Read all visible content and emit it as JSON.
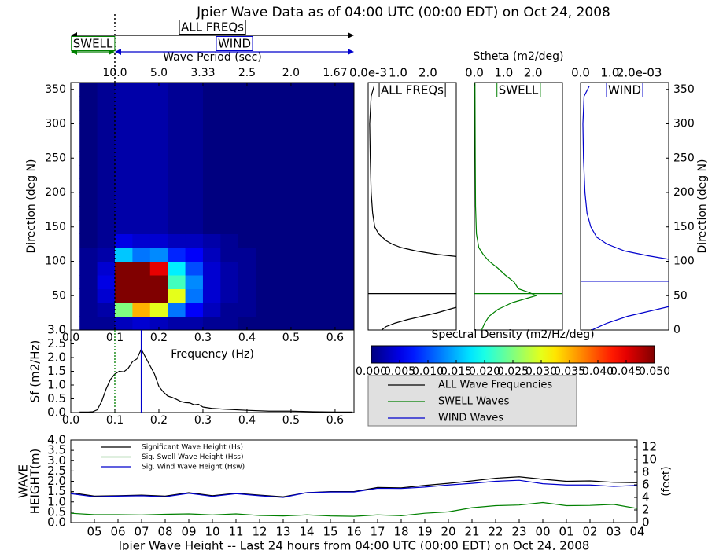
{
  "chart_data": [
    {
      "type": "heatmap",
      "title": "Jpier Wave Data as of 04:00 UTC (00:00 EDT) on Oct 24, 2008",
      "xlabel": "Frequency (Hz)",
      "ylabel": "Direction (deg N)",
      "x2label": "Wave Period (sec)",
      "xlim": [
        0,
        0.643
      ],
      "ylim": [
        0,
        360
      ],
      "xticks": [
        {
          "value": 0,
          "label": "0.0"
        },
        0.1,
        0.2,
        0.3,
        0.4,
        0.5,
        0.6
      ],
      "x2ticks": [
        {
          "value": 0.1,
          "label": "10.0"
        },
        {
          "value": 0.2,
          "label": "5.0"
        },
        {
          "value": 0.3,
          "label": "3.33"
        },
        {
          "value": 0.4,
          "label": "2.5"
        },
        {
          "value": 0.5,
          "label": "2.0"
        },
        {
          "value": 0.6,
          "label": "1.67"
        }
      ],
      "yticks": [
        0,
        50,
        100,
        150,
        200,
        250,
        300,
        350
      ],
      "xbins": [
        0.02,
        0.06,
        0.1,
        0.14,
        0.18,
        0.22,
        0.26,
        0.3,
        0.34,
        0.38,
        0.42,
        0.46,
        0.5,
        0.54,
        0.58,
        0.62,
        0.66
      ],
      "ybins": [
        0,
        20,
        40,
        60,
        80,
        100,
        120,
        140,
        160,
        180,
        200,
        220,
        240,
        260,
        280,
        300,
        320,
        340,
        360
      ],
      "values": [
        [
          0.001,
          0.001,
          0.003,
          0.004,
          0.003,
          0.002,
          0.002,
          0.001,
          0.001,
          0,
          0,
          0,
          0,
          0,
          0,
          0
        ],
        [
          0.001,
          0.002,
          0.025,
          0.035,
          0.03,
          0.012,
          0.006,
          0.003,
          0.001,
          0.001,
          0,
          0,
          0,
          0,
          0,
          0
        ],
        [
          0.001,
          0.004,
          0.05,
          0.05,
          0.05,
          0.03,
          0.012,
          0.004,
          0.002,
          0.001,
          0,
          0,
          0,
          0,
          0,
          0
        ],
        [
          0.001,
          0.005,
          0.05,
          0.05,
          0.05,
          0.022,
          0.013,
          0.004,
          0.002,
          0.001,
          0,
          0,
          0,
          0,
          0,
          0
        ],
        [
          0.001,
          0.004,
          0.05,
          0.05,
          0.045,
          0.018,
          0.01,
          0.004,
          0.002,
          0.001,
          0,
          0,
          0,
          0,
          0,
          0
        ],
        [
          0.001,
          0.002,
          0.016,
          0.012,
          0.013,
          0.008,
          0.006,
          0.003,
          0.001,
          0.001,
          0,
          0,
          0,
          0,
          0,
          0
        ],
        [
          0,
          0.001,
          0.005,
          0.004,
          0.004,
          0.003,
          0.003,
          0.002,
          0.001,
          0,
          0,
          0,
          0,
          0,
          0,
          0
        ],
        [
          0,
          0.001,
          0.002,
          0.002,
          0.002,
          0.001,
          0.001,
          0,
          0,
          0,
          0,
          0,
          0,
          0,
          0,
          0
        ],
        [
          0,
          0.001,
          0.002,
          0.002,
          0.002,
          0.001,
          0.001,
          0,
          0,
          0,
          0,
          0,
          0,
          0,
          0,
          0
        ],
        [
          0,
          0.001,
          0.002,
          0.002,
          0.002,
          0.001,
          0.001,
          0,
          0,
          0,
          0,
          0,
          0,
          0,
          0,
          0
        ],
        [
          0,
          0.001,
          0.002,
          0.002,
          0.002,
          0.001,
          0.001,
          0,
          0,
          0,
          0,
          0,
          0,
          0,
          0,
          0
        ],
        [
          0,
          0.001,
          0.002,
          0.002,
          0.002,
          0.001,
          0.001,
          0,
          0,
          0,
          0,
          0,
          0,
          0,
          0,
          0
        ],
        [
          0,
          0.001,
          0.002,
          0.002,
          0.002,
          0.001,
          0.001,
          0,
          0,
          0,
          0,
          0,
          0,
          0,
          0,
          0
        ],
        [
          0,
          0.001,
          0.002,
          0.002,
          0.002,
          0.001,
          0.001,
          0,
          0,
          0,
          0,
          0,
          0,
          0,
          0,
          0
        ],
        [
          0,
          0.001,
          0.002,
          0.002,
          0.002,
          0.001,
          0.001,
          0,
          0,
          0,
          0,
          0,
          0,
          0,
          0,
          0
        ],
        [
          0,
          0.001,
          0.002,
          0.002,
          0.002,
          0.001,
          0.001,
          0,
          0,
          0,
          0,
          0,
          0,
          0,
          0,
          0
        ],
        [
          0,
          0.001,
          0.002,
          0.002,
          0.002,
          0.001,
          0.001,
          0,
          0,
          0,
          0,
          0,
          0,
          0,
          0,
          0
        ],
        [
          0,
          0.001,
          0.002,
          0.002,
          0.002,
          0.001,
          0.001,
          0,
          0,
          0,
          0,
          0,
          0,
          0,
          0,
          0
        ]
      ],
      "bands": [
        {
          "label": "ALL FREQs",
          "color": "#000000",
          "range": [
            0,
            0.643
          ],
          "row": 0
        },
        {
          "label": "SWELL",
          "color": "#008000",
          "range": [
            0,
            0.1
          ],
          "row": 1
        },
        {
          "label": "WIND",
          "color": "#0000cc",
          "range": [
            0.1,
            0.643
          ],
          "row": 1
        }
      ],
      "markers": [
        {
          "value": 0.1,
          "color": "#000000",
          "dashed": true
        }
      ],
      "colorbar": {
        "label": "Spectral Density (m2/Hz/deg)",
        "lim": [
          0,
          0.05
        ],
        "ticks": [
          {
            "value": 0,
            "label": "0.000"
          },
          {
            "value": 0.005,
            "label": "0.005"
          },
          {
            "value": 0.01,
            "label": "0.010"
          },
          {
            "value": 0.015,
            "label": "0.015"
          },
          {
            "value": 0.02,
            "label": "0.020"
          },
          {
            "value": 0.025,
            "label": "0.025"
          },
          {
            "value": 0.03,
            "label": "0.030"
          },
          {
            "value": 0.035,
            "label": "0.035"
          },
          {
            "value": 0.04,
            "label": "0.040"
          },
          {
            "value": 0.045,
            "label": "0.045"
          },
          {
            "value": 0.05,
            "label": "0.050"
          }
        ]
      }
    },
    {
      "type": "profile",
      "label": "ALL FREQs",
      "color": "#000000",
      "xlim": [
        0,
        2.95
      ],
      "ylim": [
        0,
        360
      ],
      "xticks": [
        {
          "value": 0,
          "label": "0.0e-3"
        },
        {
          "value": 1,
          "label": "1.0"
        },
        {
          "value": 2,
          "label": "2.0"
        }
      ],
      "directions": [
        0,
        5,
        10,
        15,
        20,
        25,
        30,
        33,
        70,
        107,
        110,
        115,
        120,
        125,
        130,
        140,
        150,
        170,
        200,
        250,
        300,
        340,
        355
      ],
      "values": [
        0.45,
        0.6,
        0.9,
        1.3,
        1.8,
        2.3,
        2.7,
        2.95,
        null,
        2.95,
        2.3,
        1.6,
        1.1,
        0.8,
        0.6,
        0.35,
        0.22,
        0.15,
        0.1,
        0.07,
        0.05,
        0.1,
        0.2
      ],
      "mean_direction": 53
    },
    {
      "type": "profile",
      "label": "SWELL",
      "color": "#008000",
      "xlabel": "Stheta (m2/deg)",
      "xlim": [
        0,
        3.0
      ],
      "ylim": [
        0,
        360
      ],
      "xticks": [
        {
          "value": 0,
          "label": "0.0"
        },
        {
          "value": 1,
          "label": "1.0"
        },
        {
          "value": 2,
          "label": "2.0"
        }
      ],
      "directions": [
        0,
        10,
        20,
        30,
        40,
        45,
        50,
        55,
        60,
        70,
        80,
        90,
        100,
        110,
        120,
        140,
        180,
        250,
        360
      ],
      "values": [
        0.25,
        0.35,
        0.5,
        0.8,
        1.3,
        1.7,
        2.1,
        1.85,
        1.5,
        1.35,
        1.05,
        0.8,
        0.5,
        0.3,
        0.15,
        0.07,
        0.04,
        0.03,
        0.02
      ],
      "mean_direction": 53
    },
    {
      "type": "profile",
      "label": "WIND",
      "color": "#0000cc",
      "ylabel": "Direction (deg N)",
      "xlim": [
        0,
        3.0
      ],
      "ylim": [
        0,
        360
      ],
      "xticks": [
        {
          "value": 0,
          "label": "0.0"
        },
        {
          "value": 1,
          "label": "1.0"
        },
        {
          "value": 2,
          "label": "2.0e-03"
        }
      ],
      "yticks": [
        0,
        50,
        100,
        150,
        200,
        250,
        300,
        350
      ],
      "directions": [
        0,
        10,
        20,
        30,
        34,
        70,
        103,
        108,
        115,
        125,
        135,
        150,
        170,
        200,
        250,
        300,
        340,
        355
      ],
      "values": [
        0.38,
        0.9,
        1.6,
        2.6,
        3.0,
        null,
        3.0,
        2.3,
        1.5,
        0.9,
        0.55,
        0.35,
        0.22,
        0.15,
        0.1,
        0.08,
        0.12,
        0.3
      ],
      "mean_direction": 71
    },
    {
      "type": "line",
      "ylabel": "Sf (m2/Hz)",
      "xlim": [
        0,
        0.643
      ],
      "ylim": [
        0,
        3
      ],
      "xticks": [
        {
          "value": 0,
          "label": "0.0"
        },
        0.1,
        0.2,
        0.3,
        0.4,
        0.5,
        0.6
      ],
      "yticks": [
        {
          "value": 0,
          "label": "0.0"
        },
        0.5,
        {
          "value": 1,
          "label": "1.0"
        },
        1.5,
        {
          "value": 2,
          "label": "2.0"
        },
        2.5,
        {
          "value": 3,
          "label": "3.0"
        }
      ],
      "x": [
        0.02,
        0.04,
        0.05,
        0.06,
        0.07,
        0.08,
        0.09,
        0.1,
        0.11,
        0.12,
        0.13,
        0.14,
        0.15,
        0.16,
        0.17,
        0.18,
        0.19,
        0.2,
        0.21,
        0.22,
        0.23,
        0.24,
        0.25,
        0.26,
        0.27,
        0.28,
        0.29,
        0.3,
        0.32,
        0.35,
        0.4,
        0.45,
        0.5,
        0.55,
        0.6,
        0.64
      ],
      "series": [
        {
          "color": "#000000",
          "values": [
            0.02,
            0.02,
            0.03,
            0.1,
            0.4,
            0.85,
            1.2,
            1.4,
            1.5,
            1.48,
            1.6,
            1.85,
            1.95,
            2.3,
            2.0,
            1.7,
            1.4,
            0.95,
            0.75,
            0.6,
            0.55,
            0.48,
            0.4,
            0.36,
            0.35,
            0.28,
            0.3,
            0.2,
            0.15,
            0.12,
            0.08,
            0.05,
            0.05,
            0.03,
            0.02,
            0.02
          ]
        }
      ],
      "vlines": [
        {
          "value": 0.1,
          "color": "#008000",
          "dashed": true
        },
        {
          "value": 0.16,
          "color": "#0000cc"
        }
      ]
    },
    {
      "type": "legend",
      "entries": [
        {
          "name": "ALL Wave Frequencies",
          "color": "#000000"
        },
        {
          "name": "SWELL Waves",
          "color": "#008000"
        },
        {
          "name": "WIND Waves",
          "color": "#0000cc"
        }
      ]
    },
    {
      "type": "line",
      "xlabel": "Jpier Wave Height -- Last 24 hours from 04:00 UTC (00:00 EDT) on Oct 24, 2008",
      "ylabel": [
        "WAVE",
        "HEIGHT(m)"
      ],
      "y2label": "(feet)",
      "categories": [
        null,
        "05",
        "06",
        "07",
        "08",
        "09",
        "10",
        "11",
        "12",
        "13",
        "14",
        "15",
        "16",
        "17",
        "18",
        "19",
        "20",
        "21",
        "22",
        "23",
        "00",
        "01",
        "02",
        "03",
        "04"
      ],
      "ylim": [
        0,
        4
      ],
      "yticks": [
        {
          "value": 0,
          "label": "0.0"
        },
        0.5,
        {
          "value": 1,
          "label": "1.0"
        },
        1.5,
        {
          "value": 2,
          "label": "2.0"
        },
        2.5,
        {
          "value": 3,
          "label": "3.0"
        },
        3.5,
        {
          "value": 4,
          "label": "4.0"
        }
      ],
      "y2lim": [
        0,
        13.12
      ],
      "y2ticks": [
        0,
        2,
        4,
        6,
        8,
        10,
        12
      ],
      "legend": "upper left",
      "series": [
        {
          "name": "Significant Wave Height (Hs)",
          "color": "#000000",
          "values": [
            1.45,
            1.28,
            1.3,
            1.33,
            1.28,
            1.45,
            1.3,
            1.42,
            1.33,
            1.25,
            1.45,
            1.5,
            1.5,
            1.7,
            1.68,
            1.8,
            1.9,
            2.02,
            2.15,
            2.22,
            2.1,
            2.0,
            2.02,
            1.95,
            1.93
          ]
        },
        {
          "name": "Sig. Swell Wave Height (Hss)",
          "color": "#008000",
          "values": [
            0.45,
            0.38,
            0.38,
            0.37,
            0.4,
            0.42,
            0.37,
            0.42,
            0.34,
            0.32,
            0.37,
            0.32,
            0.3,
            0.37,
            0.33,
            0.45,
            0.52,
            0.72,
            0.82,
            0.85,
            0.97,
            0.82,
            0.83,
            0.88,
            0.68
          ]
        },
        {
          "name": "Sig. Wind Wave Height (Hsw)",
          "color": "#0000cc",
          "values": [
            1.4,
            1.25,
            1.28,
            1.3,
            1.25,
            1.42,
            1.27,
            1.4,
            1.3,
            1.22,
            1.45,
            1.48,
            1.48,
            1.66,
            1.65,
            1.72,
            1.82,
            1.9,
            2.0,
            2.05,
            1.88,
            1.82,
            1.82,
            1.75,
            1.8
          ]
        }
      ]
    }
  ]
}
